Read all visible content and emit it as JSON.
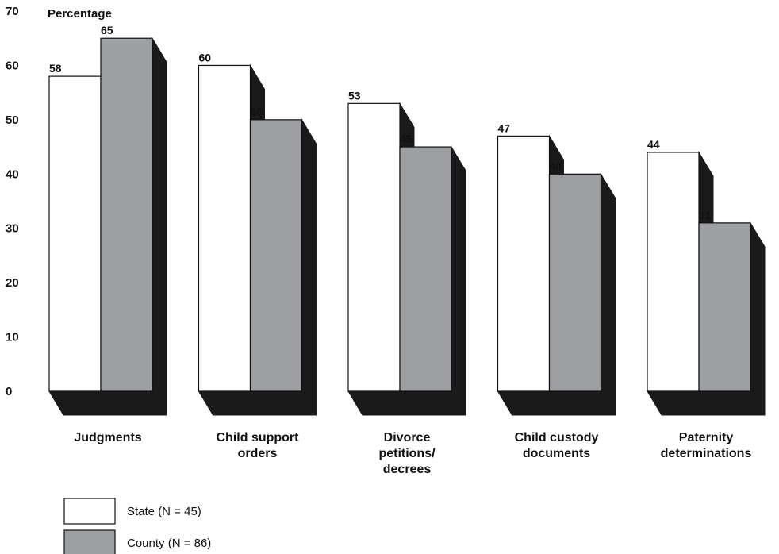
{
  "chart_data": {
    "type": "bar",
    "ylabel": "Percentage",
    "ylim": [
      0,
      70
    ],
    "yticks": [
      0,
      10,
      20,
      30,
      40,
      50,
      60,
      70
    ],
    "categories": [
      [
        "Judgments"
      ],
      [
        "Child support",
        "orders"
      ],
      [
        "Divorce",
        "petitions/",
        "decrees"
      ],
      [
        "Child custody",
        "documents"
      ],
      [
        "Paternity",
        "determinations"
      ]
    ],
    "series": [
      {
        "name": "State (N = 45)",
        "values": [
          58,
          60,
          53,
          47,
          44
        ],
        "color": "#ffffff"
      },
      {
        "name": "County (N = 86)",
        "values": [
          65,
          50,
          45,
          40,
          31
        ],
        "color": "#9d9fa2"
      }
    ],
    "shadow_color": "#1a1a1a",
    "bar_border_color": "#111111",
    "legend_position": "bottom-left",
    "grid": false
  }
}
